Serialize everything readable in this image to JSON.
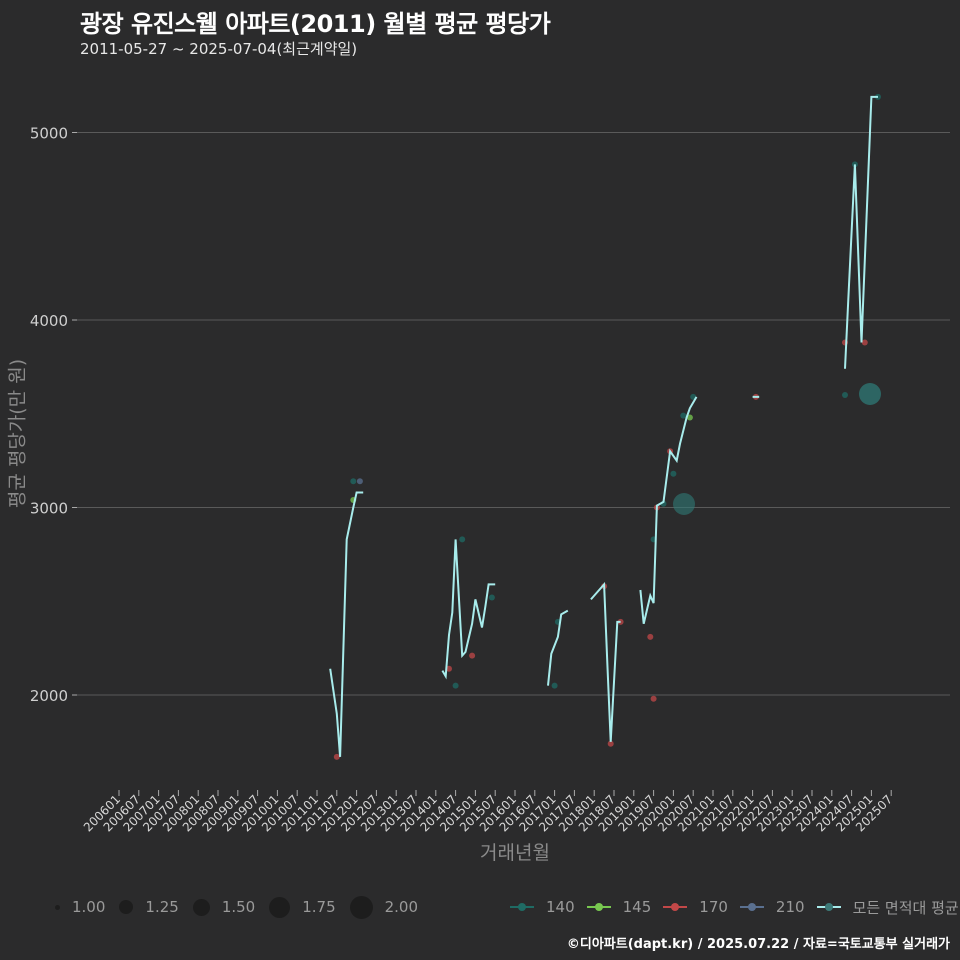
{
  "header": {
    "title": "광장 유진스웰 아파트(2011) 월별 평균 평당가",
    "subtitle": "2011-05-27 ~ 2025-07-04(최근계약일)"
  },
  "caption": "©디아파트(dapt.kr) / 2025.07.22 / 자료=국토교통부 실거래가",
  "colors": {
    "background": "#2b2b2c",
    "grid": "#5a5a5a",
    "avg_line": "#a8ecec",
    "s140": "#1f6b64",
    "s145": "#78c850",
    "s170": "#c24848",
    "s210": "#5a7090"
  },
  "chart_data": {
    "type": "line",
    "title": "광장 유진스웰 아파트(2011) 월별 평균 평당가",
    "subtitle": "2011-05-27 ~ 2025-07-04(최근계약일)",
    "xlabel": "거래년월",
    "ylabel": "평균 평당가(만 원)",
    "yticks": [
      2000,
      3000,
      4000,
      5000
    ],
    "ylim": [
      1500,
      5350
    ],
    "grid": true,
    "xticks": [
      "200601",
      "200607",
      "200701",
      "200707",
      "200801",
      "200807",
      "200901",
      "200907",
      "201001",
      "201007",
      "201101",
      "201107",
      "201201",
      "201207",
      "201301",
      "201307",
      "201401",
      "201407",
      "201501",
      "201507",
      "201601",
      "201607",
      "201701",
      "201707",
      "201801",
      "201807",
      "201901",
      "201907",
      "202001",
      "202007",
      "202101",
      "202107",
      "202201",
      "202207",
      "202301",
      "202307",
      "202401",
      "202407",
      "202501",
      "202507"
    ],
    "legend_size": {
      "title": "",
      "values": [
        "1.00",
        "1.25",
        "1.50",
        "1.75",
        "2.00"
      ]
    },
    "legend_color": [
      "140",
      "145",
      "170",
      "210",
      "모든 면적대 평균"
    ],
    "series": [
      {
        "name": "모든 면적대 평균",
        "type": "step-line",
        "segments": [
          [
            [
              "2011-05",
              2140
            ],
            [
              "2011-07",
              1900
            ],
            [
              "2011-08",
              1670
            ],
            [
              "2011-10",
              2830
            ],
            [
              "2011-12",
              3000
            ],
            [
              "2012-01",
              3080
            ],
            [
              "2012-03",
              3080
            ]
          ],
          [
            [
              "2014-03",
              2130
            ],
            [
              "2014-04",
              2100
            ],
            [
              "2014-05",
              2320
            ],
            [
              "2014-06",
              2440
            ],
            [
              "2014-07",
              2830
            ],
            [
              "2014-09",
              2210
            ],
            [
              "2014-10",
              2230
            ],
            [
              "2014-12",
              2380
            ],
            [
              "2015-01",
              2510
            ],
            [
              "2015-03",
              2360
            ],
            [
              "2015-04",
              2470
            ],
            [
              "2015-05",
              2590
            ],
            [
              "2015-07",
              2590
            ]
          ],
          [
            [
              "2016-11",
              2050
            ],
            [
              "2016-12",
              2220
            ],
            [
              "2017-02",
              2310
            ],
            [
              "2017-03",
              2430
            ],
            [
              "2017-05",
              2450
            ]
          ],
          [
            [
              "2017-12",
              2510
            ],
            [
              "2018-02",
              2550
            ],
            [
              "2018-04",
              2590
            ],
            [
              "2018-05",
              2160
            ],
            [
              "2018-06",
              1750
            ],
            [
              "2018-07",
              2070
            ],
            [
              "2018-08",
              2390
            ],
            [
              "2018-09",
              2390
            ]
          ],
          [
            [
              "2019-03",
              2560
            ],
            [
              "2019-04",
              2380
            ],
            [
              "2019-06",
              2530
            ],
            [
              "2019-07",
              2490
            ],
            [
              "2019-08",
              3010
            ],
            [
              "2019-10",
              3030
            ],
            [
              "2019-12",
              3300
            ],
            [
              "2020-02",
              3250
            ],
            [
              "2020-03",
              3340
            ],
            [
              "2020-05",
              3480
            ],
            [
              "2020-06",
              3530
            ],
            [
              "2020-08",
              3590
            ]
          ],
          [
            [
              "2022-01",
              3590
            ],
            [
              "2022-03",
              3590
            ]
          ],
          [
            [
              "2024-05",
              3740
            ],
            [
              "2024-06",
              4110
            ],
            [
              "2024-08",
              4830
            ],
            [
              "2024-10",
              3880
            ],
            [
              "2025-01",
              5190
            ],
            [
              "2025-03",
              5190
            ]
          ]
        ]
      },
      {
        "name": "140",
        "points": [
          [
            "2011-12",
            3140
          ],
          [
            "2014-07",
            2050
          ],
          [
            "2014-09",
            2830
          ],
          [
            "2015-06",
            2520
          ],
          [
            "2017-01",
            2050
          ],
          [
            "2017-02",
            2390
          ],
          [
            "2019-07",
            2830
          ],
          [
            "2019-10",
            3020
          ],
          [
            "2020-01",
            3180
          ],
          [
            "2020-04",
            3490
          ],
          [
            "2020-07",
            3590
          ],
          [
            "2024-05",
            3600
          ],
          [
            "2025-03",
            5190
          ],
          [
            "2024-08",
            4830
          ]
        ]
      },
      {
        "name": "145",
        "points": [
          [
            "2011-12",
            3040
          ],
          [
            "2020-06",
            3480
          ]
        ]
      },
      {
        "name": "170",
        "points": [
          [
            "2011-07",
            1670
          ],
          [
            "2014-05",
            2140
          ],
          [
            "2014-12",
            2210
          ],
          [
            "2018-04",
            2580
          ],
          [
            "2018-06",
            1740
          ],
          [
            "2018-09",
            2390
          ],
          [
            "2019-06",
            2310
          ],
          [
            "2019-07",
            1980
          ],
          [
            "2019-08",
            3000
          ],
          [
            "2019-12",
            3300
          ],
          [
            "2022-02",
            3590
          ],
          [
            "2024-05",
            3880
          ],
          [
            "2024-11",
            3880
          ]
        ]
      },
      {
        "name": "210",
        "points": [
          [
            "2012-02",
            3140
          ]
        ]
      }
    ]
  }
}
